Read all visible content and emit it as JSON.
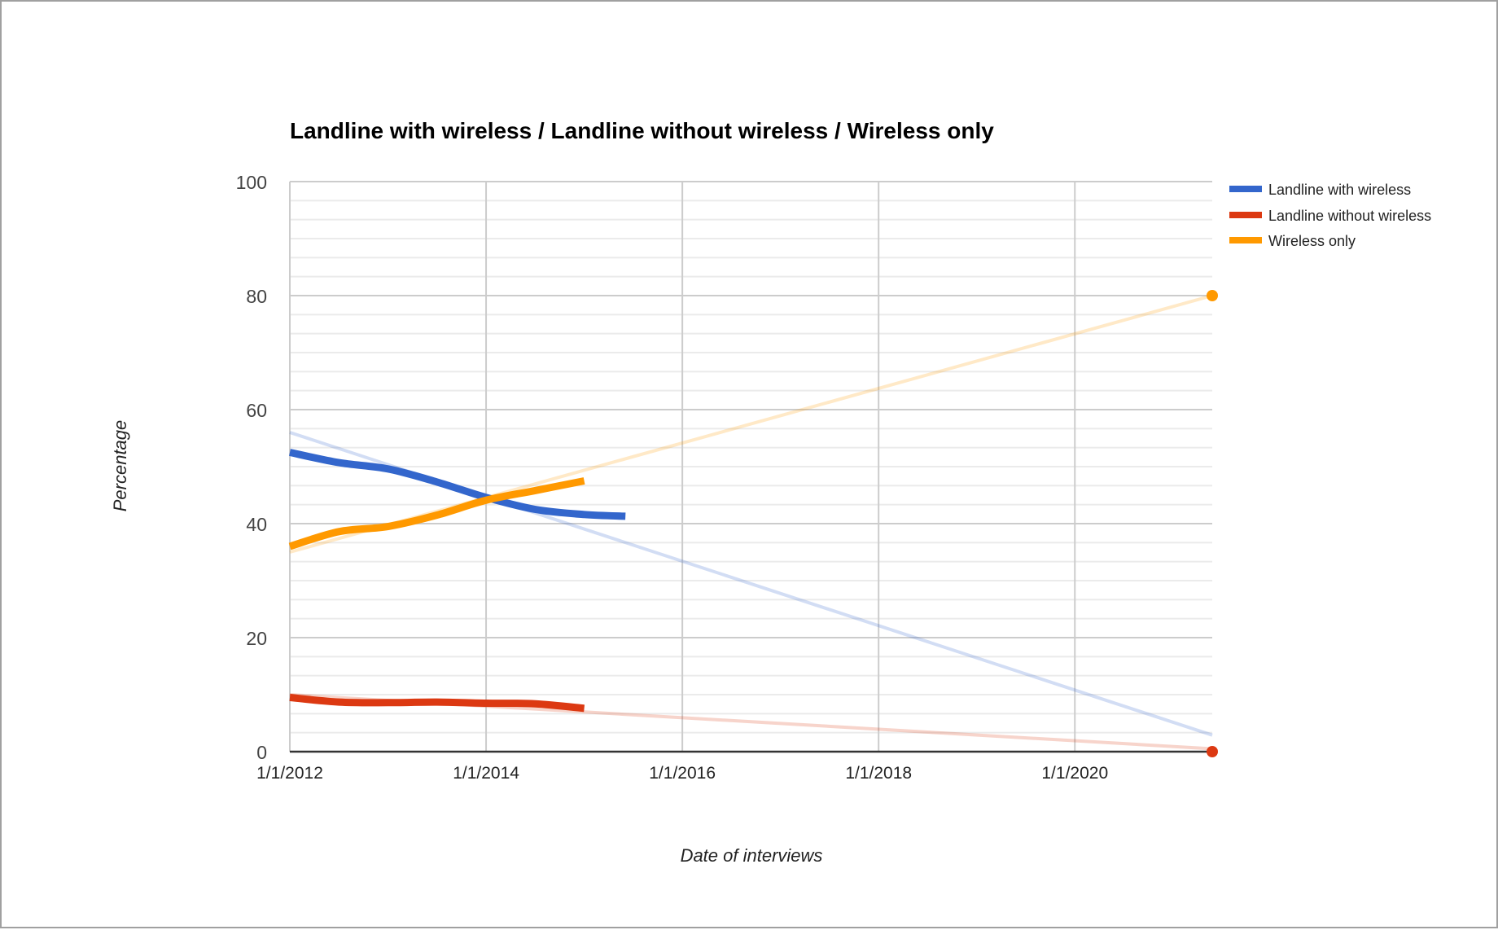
{
  "chart_data": {
    "type": "line",
    "title": "Landline with wireless / Landline without wireless / Wireless only",
    "xlabel": "Date of interviews",
    "ylabel": "Percentage",
    "ylim": [
      0,
      100
    ],
    "yticks": [
      0,
      20,
      40,
      60,
      80,
      100
    ],
    "xticks": [
      "1/1/2012",
      "1/1/2014",
      "1/1/2016",
      "1/1/2018",
      "1/1/2020"
    ],
    "xlim_years": [
      2012.0,
      2021.4
    ],
    "grid": true,
    "legend_position": "right",
    "x": [
      2012.0,
      2012.5,
      2013.0,
      2013.5,
      2014.0,
      2014.5,
      2015.0,
      2015.42
    ],
    "series": [
      {
        "name": "Landline with wireless",
        "color": "#3366cc",
        "points": [
          [
            2012.0,
            52.5
          ],
          [
            2012.5,
            50.7
          ],
          [
            2013.0,
            49.6
          ],
          [
            2013.5,
            47.3
          ],
          [
            2014.0,
            44.6
          ],
          [
            2014.5,
            42.5
          ],
          [
            2015.0,
            41.6
          ],
          [
            2015.42,
            41.3
          ]
        ],
        "trendline": [
          [
            2012.0,
            56.0
          ],
          [
            2021.4,
            2.9
          ]
        ]
      },
      {
        "name": "Landline without wireless",
        "color": "#dc3912",
        "points": [
          [
            2012.0,
            9.5
          ],
          [
            2012.5,
            8.7
          ],
          [
            2013.0,
            8.6
          ],
          [
            2013.5,
            8.7
          ],
          [
            2014.0,
            8.5
          ],
          [
            2014.5,
            8.4
          ],
          [
            2015.0,
            7.6
          ]
        ],
        "trendline": [
          [
            2012.0,
            10.0
          ],
          [
            2021.4,
            0.5
          ]
        ],
        "endpoint": [
          2021.4,
          0
        ]
      },
      {
        "name": "Wireless only",
        "color": "#ff9900",
        "points": [
          [
            2012.0,
            36.0
          ],
          [
            2012.5,
            38.6
          ],
          [
            2013.0,
            39.5
          ],
          [
            2013.5,
            41.5
          ],
          [
            2014.0,
            44.1
          ],
          [
            2014.5,
            45.8
          ],
          [
            2015.0,
            47.5
          ]
        ],
        "trendline": [
          [
            2012.0,
            35.0
          ],
          [
            2021.4,
            80.0
          ]
        ],
        "endpoint": [
          2021.4,
          80
        ]
      }
    ]
  }
}
